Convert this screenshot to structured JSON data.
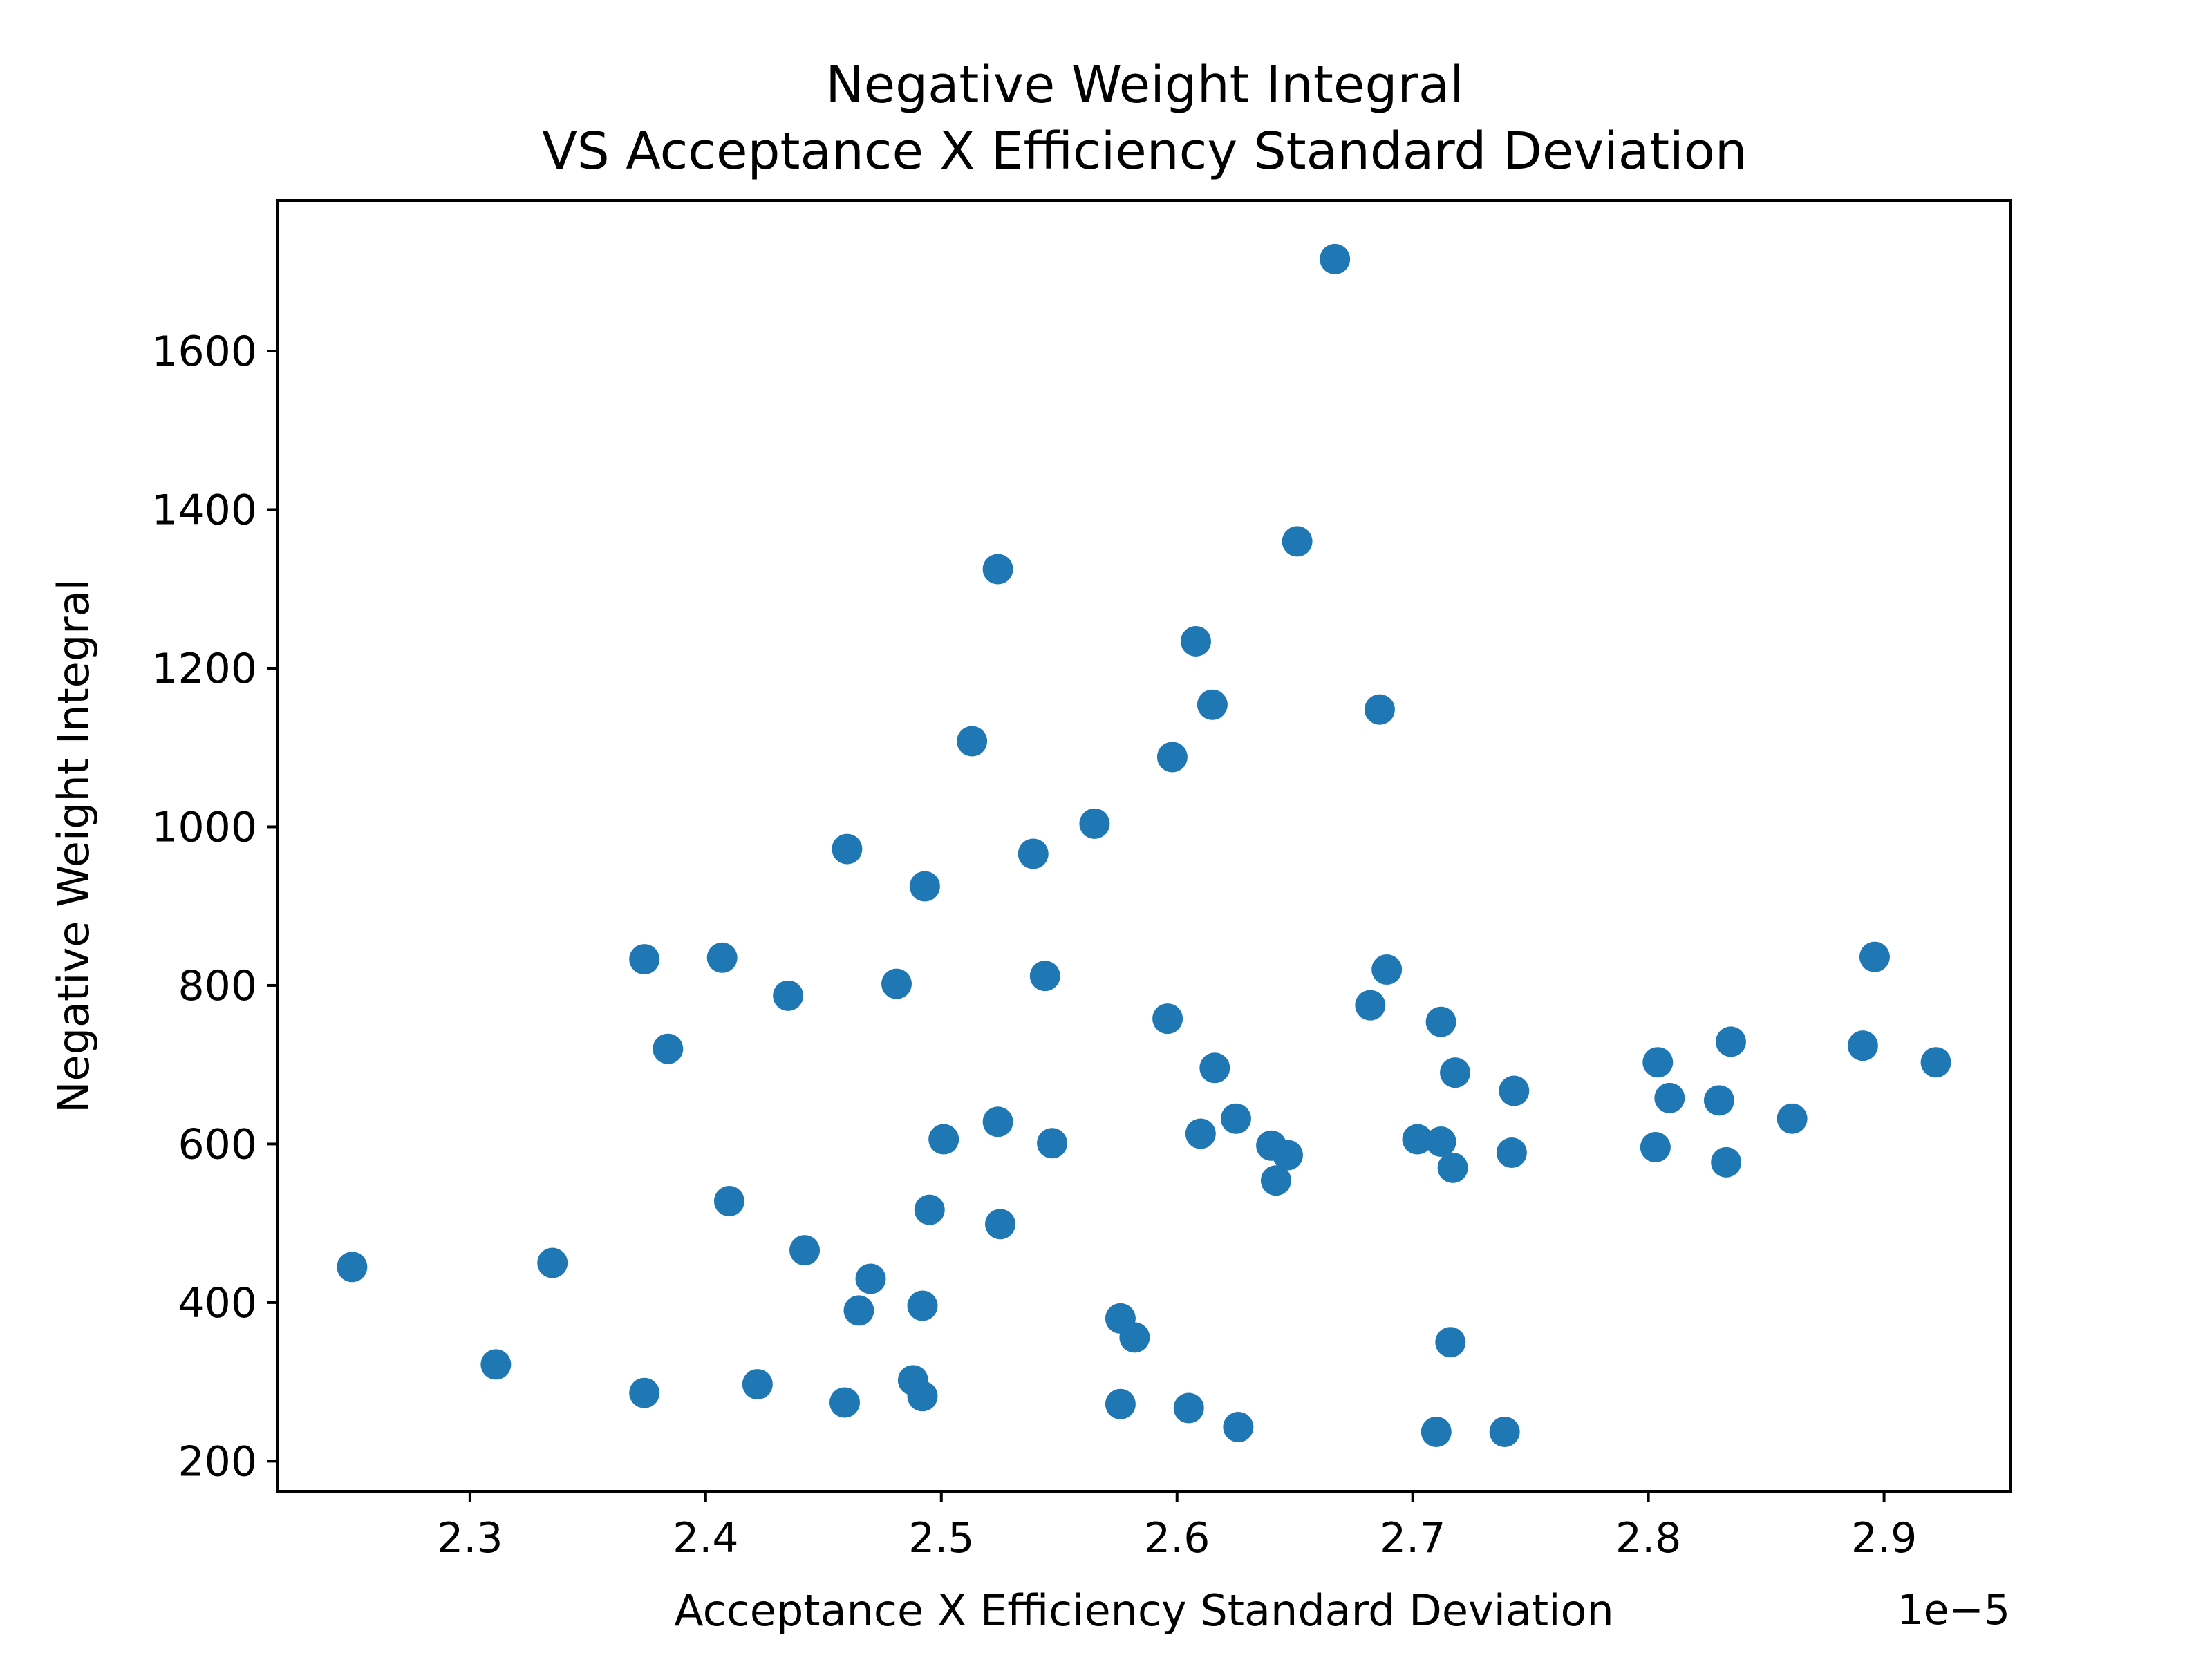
{
  "chart_data": {
    "type": "scatter",
    "title": [
      "Negative Weight Integral",
      "VS Acceptance X Efficiency Standard Deviation"
    ],
    "xlabel": "Acceptance X Efficiency Standard Deviation",
    "ylabel": "Negative Weight Integral",
    "x_offset_label": "1e−5",
    "xlim": [
      2.2185,
      2.9535
    ],
    "ylim": [
      162,
      1790
    ],
    "xticks": [
      2.3,
      2.4,
      2.5,
      2.6,
      2.7,
      2.8,
      2.9
    ],
    "xtick_labels": [
      "2.3",
      "2.4",
      "2.5",
      "2.6",
      "2.7",
      "2.8",
      "2.9"
    ],
    "yticks": [
      200,
      400,
      600,
      800,
      1000,
      1200,
      1400,
      1600
    ],
    "ytick_labels": [
      "200",
      "400",
      "600",
      "800",
      "1000",
      "1200",
      "1400",
      "1600"
    ],
    "grid": false,
    "marker_color": "#1f77b4",
    "points": [
      [
        2.25,
        445
      ],
      [
        2.311,
        322
      ],
      [
        2.335,
        450
      ],
      [
        2.374,
        833
      ],
      [
        2.374,
        286
      ],
      [
        2.384,
        720
      ],
      [
        2.407,
        835
      ],
      [
        2.41,
        528
      ],
      [
        2.422,
        297
      ],
      [
        2.435,
        787
      ],
      [
        2.442,
        466
      ],
      [
        2.459,
        274
      ],
      [
        2.46,
        972
      ],
      [
        2.465,
        390
      ],
      [
        2.47,
        430
      ],
      [
        2.481,
        802
      ],
      [
        2.488,
        302
      ],
      [
        2.492,
        396
      ],
      [
        2.492,
        282
      ],
      [
        2.493,
        925
      ],
      [
        2.495,
        517
      ],
      [
        2.501,
        606
      ],
      [
        2.513,
        1108
      ],
      [
        2.524,
        1325
      ],
      [
        2.524,
        628
      ],
      [
        2.525,
        499
      ],
      [
        2.539,
        966
      ],
      [
        2.544,
        812
      ],
      [
        2.547,
        601
      ],
      [
        2.565,
        1004
      ],
      [
        2.576,
        380
      ],
      [
        2.576,
        272
      ],
      [
        2.582,
        356
      ],
      [
        2.596,
        758
      ],
      [
        2.598,
        1088
      ],
      [
        2.605,
        267
      ],
      [
        2.608,
        1234
      ],
      [
        2.61,
        613
      ],
      [
        2.615,
        1154
      ],
      [
        2.616,
        696
      ],
      [
        2.625,
        632
      ],
      [
        2.626,
        243
      ],
      [
        2.64,
        598
      ],
      [
        2.642,
        554
      ],
      [
        2.647,
        586
      ],
      [
        2.651,
        1360
      ],
      [
        2.667,
        1716
      ],
      [
        2.682,
        775
      ],
      [
        2.686,
        1148
      ],
      [
        2.689,
        820
      ],
      [
        2.702,
        606
      ],
      [
        2.71,
        237
      ],
      [
        2.712,
        603
      ],
      [
        2.712,
        754
      ],
      [
        2.716,
        350
      ],
      [
        2.717,
        570
      ],
      [
        2.718,
        690
      ],
      [
        2.739,
        237
      ],
      [
        2.742,
        589
      ],
      [
        2.743,
        667
      ],
      [
        2.803,
        596
      ],
      [
        2.804,
        703
      ],
      [
        2.809,
        658
      ],
      [
        2.83,
        655
      ],
      [
        2.833,
        577
      ],
      [
        2.835,
        729
      ],
      [
        2.861,
        632
      ],
      [
        2.891,
        724
      ],
      [
        2.896,
        836
      ],
      [
        2.922,
        703
      ]
    ]
  }
}
